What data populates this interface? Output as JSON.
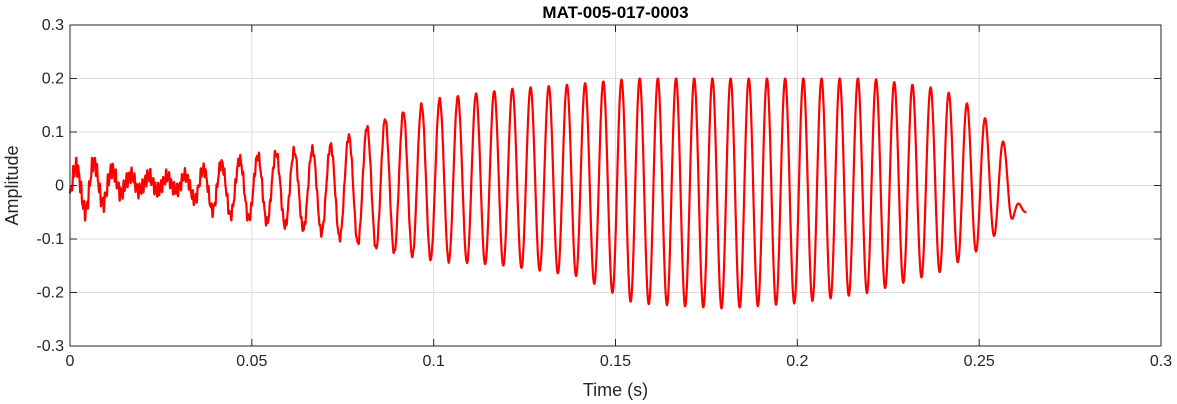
{
  "chart_data": {
    "type": "line",
    "title": "MAT-005-017-0003",
    "xlabel": "Time (s)",
    "ylabel": "Amplitude",
    "xlim": [
      0,
      0.3
    ],
    "ylim": [
      -0.3,
      0.3
    ],
    "xticks": [
      0,
      0.05,
      0.1,
      0.15,
      0.2,
      0.25,
      0.3
    ],
    "xtick_labels": [
      "0",
      "0.05",
      "0.1",
      "0.15",
      "0.2",
      "0.25",
      "0.3"
    ],
    "yticks": [
      -0.3,
      -0.2,
      -0.1,
      0,
      0.1,
      0.2,
      0.3
    ],
    "ytick_labels": [
      "-0.3",
      "-0.2",
      "-0.1",
      "0",
      "0.1",
      "0.2",
      "0.3"
    ],
    "grid": true,
    "line_color": "#ff0000",
    "series": [
      {
        "signal_frequency_hz": 200,
        "duration_s": 0.263,
        "envelope": {
          "t": [
            0,
            0.005,
            0.015,
            0.03,
            0.04,
            0.055,
            0.07,
            0.085,
            0.1,
            0.12,
            0.14,
            0.155,
            0.18,
            0.2,
            0.22,
            0.24,
            0.25,
            0.258,
            0.263
          ],
          "upper": [
            0.03,
            0.05,
            0.02,
            0.015,
            0.04,
            0.06,
            0.07,
            0.12,
            0.16,
            0.18,
            0.19,
            0.2,
            0.2,
            0.2,
            0.2,
            0.18,
            0.14,
            0.07,
            -0.05
          ],
          "lower": [
            -0.04,
            -0.05,
            -0.01,
            -0.01,
            -0.05,
            -0.07,
            -0.09,
            -0.12,
            -0.14,
            -0.15,
            -0.17,
            -0.22,
            -0.23,
            -0.22,
            -0.2,
            -0.16,
            -0.12,
            -0.07,
            -0.05
          ]
        },
        "final_value": -0.05
      }
    ]
  }
}
